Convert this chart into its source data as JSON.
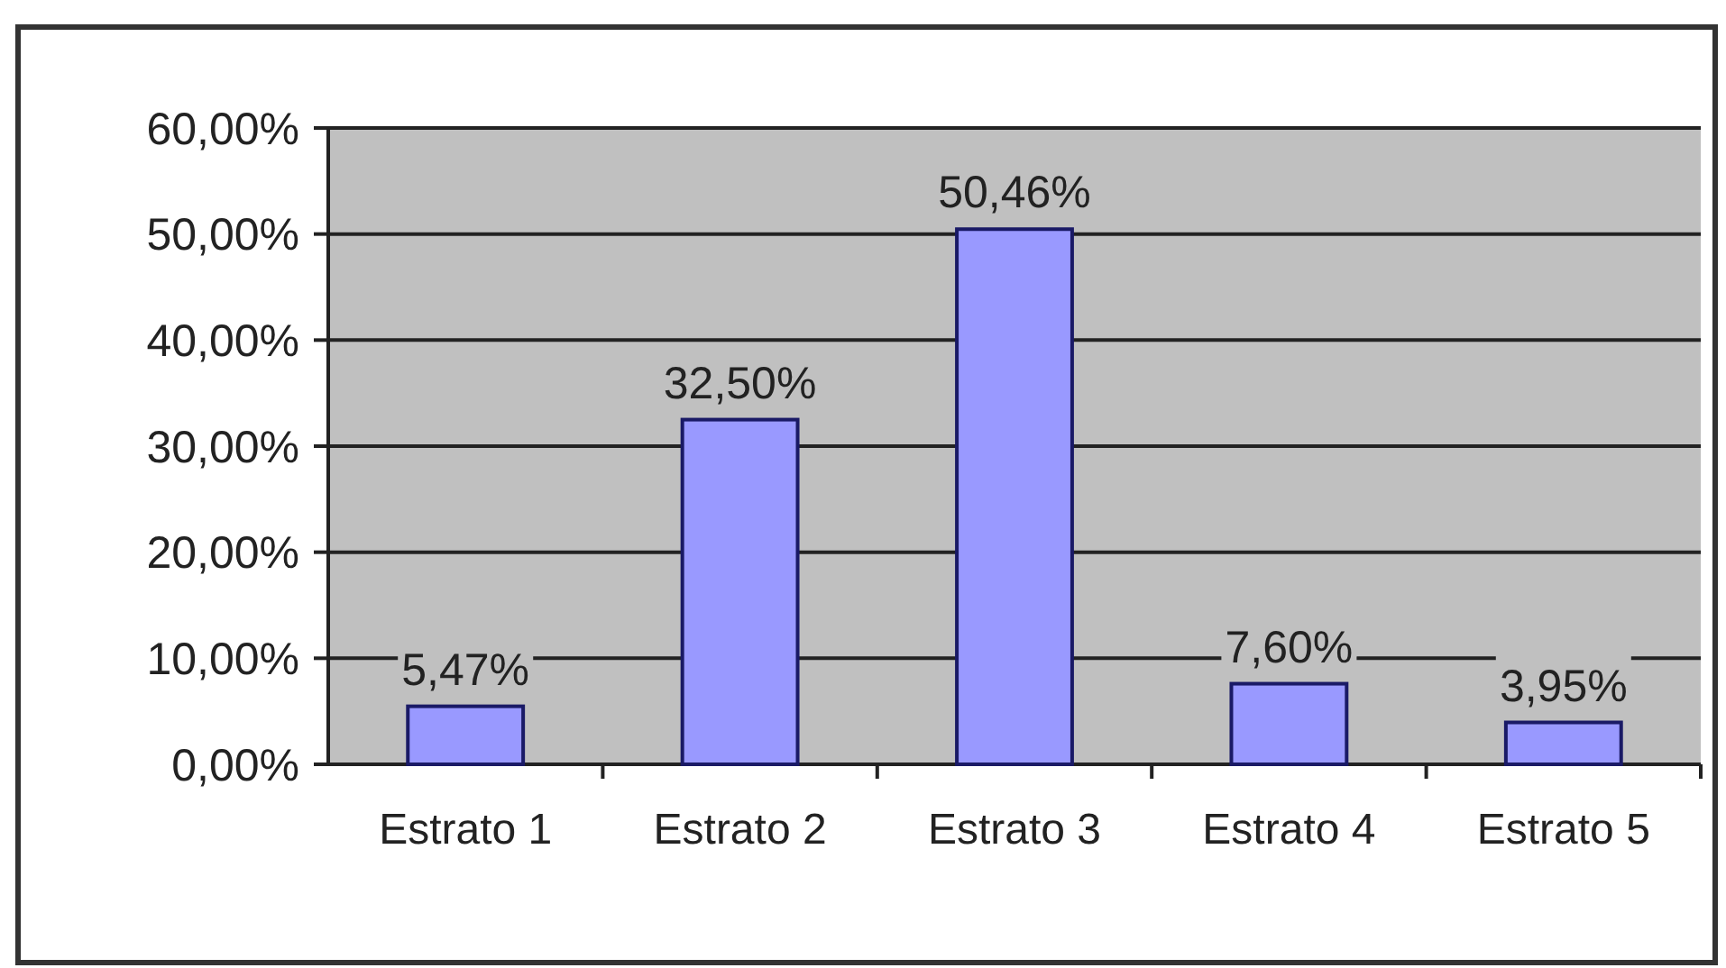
{
  "chart_data": {
    "type": "bar",
    "categories": [
      "Estrato 1",
      "Estrato 2",
      "Estrato 3",
      "Estrato 4",
      "Estrato 5"
    ],
    "values": [
      5.47,
      32.5,
      50.46,
      7.6,
      3.95
    ],
    "value_labels": [
      "5,47%",
      "32,50%",
      "50,46%",
      "7,60%",
      "3,95%"
    ],
    "color": "#9999ff",
    "ylim": [
      0,
      60
    ],
    "yticks": [
      {
        "value": 0,
        "label": "0,00%"
      },
      {
        "value": 10,
        "label": "10,00%"
      },
      {
        "value": 20,
        "label": "20,00%"
      },
      {
        "value": 30,
        "label": "30,00%"
      },
      {
        "value": 40,
        "label": "40,00%"
      },
      {
        "value": 50,
        "label": "50,00%"
      },
      {
        "value": 60,
        "label": "60,00%"
      }
    ],
    "grid": "y"
  }
}
